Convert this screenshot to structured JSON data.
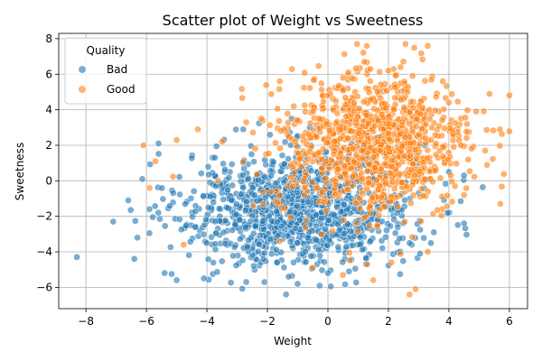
{
  "chart_data": {
    "type": "scatter",
    "title": "Scatter plot of Weight vs Sweetness",
    "xlabel": "Weight",
    "ylabel": "Sweetness",
    "xlim": [
      -8.9,
      6.6
    ],
    "ylim": [
      -7.2,
      8.3
    ],
    "xticks": [
      -8,
      -6,
      -4,
      -2,
      0,
      2,
      4,
      6
    ],
    "yticks": [
      -6,
      -4,
      -2,
      0,
      2,
      4,
      6,
      8
    ],
    "grid": true,
    "legend": {
      "title": "Quality",
      "placement": "top-left"
    },
    "series": [
      {
        "name": "Bad",
        "color": "#1f77b4",
        "center": [
          -1.0,
          -1.6
        ],
        "spread": [
          1.9,
          1.6
        ],
        "count": 1100,
        "points": [
          [
            -8.3,
            -4.3
          ],
          [
            -7.1,
            -2.3
          ],
          [
            -6.6,
            -1.1
          ],
          [
            -6.4,
            -4.4
          ],
          [
            -6.3,
            -3.2
          ],
          [
            -5.9,
            -1.6
          ],
          [
            -5.6,
            2.1
          ],
          [
            -5.4,
            -5.2
          ],
          [
            -5.0,
            -5.6
          ],
          [
            -4.1,
            -5.5
          ],
          [
            -2.7,
            -5.7
          ],
          [
            -2.1,
            -5.7
          ],
          [
            -1.3,
            -5.4
          ],
          [
            -1.0,
            -5.8
          ],
          [
            0.0,
            -5.2
          ],
          [
            0.7,
            -5.1
          ],
          [
            1.3,
            3.5
          ],
          [
            1.8,
            -3.8
          ],
          [
            2.7,
            -3.5
          ],
          [
            3.2,
            2.0
          ],
          [
            3.5,
            -2.9
          ],
          [
            4.0,
            0.5
          ],
          [
            4.5,
            0.3
          ],
          [
            4.5,
            -2.4
          ],
          [
            -1.2,
            3.5
          ],
          [
            0.3,
            2.1
          ],
          [
            -0.6,
            3.0
          ],
          [
            -2.8,
            2.9
          ],
          [
            2.3,
            -1.8
          ],
          [
            3.0,
            -0.7
          ]
        ]
      },
      {
        "name": "Good",
        "color": "#ff7f0e",
        "center": [
          1.5,
          2.0
        ],
        "spread": [
          1.6,
          2.0
        ],
        "count": 1000,
        "points": [
          [
            -6.1,
            2.0
          ],
          [
            -5.9,
            -0.4
          ],
          [
            -5.7,
            1.1
          ],
          [
            -5.0,
            2.3
          ],
          [
            -4.3,
            2.9
          ],
          [
            -3.5,
            2.2
          ],
          [
            -2.2,
            3.5
          ],
          [
            -1.0,
            3.4
          ],
          [
            -0.3,
            3.5
          ],
          [
            0.0,
            4.8
          ],
          [
            0.5,
            5.8
          ],
          [
            1.2,
            6.7
          ],
          [
            1.4,
            6.3
          ],
          [
            2.0,
            6.2
          ],
          [
            2.4,
            6.4
          ],
          [
            2.8,
            5.9
          ],
          [
            3.3,
            7.6
          ],
          [
            3.8,
            5.6
          ],
          [
            4.0,
            4.4
          ],
          [
            4.4,
            2.0
          ],
          [
            4.6,
            3.2
          ],
          [
            4.9,
            3.9
          ],
          [
            5.2,
            1.7
          ],
          [
            5.7,
            -1.3
          ],
          [
            4.5,
            -0.8
          ],
          [
            2.7,
            -6.4
          ],
          [
            2.9,
            -6.1
          ],
          [
            1.5,
            -5.6
          ],
          [
            0.5,
            -5.3
          ],
          [
            -0.5,
            -4.9
          ],
          [
            1.3,
            -4.7
          ],
          [
            2.1,
            -4.6
          ],
          [
            -1.6,
            -3.4
          ],
          [
            3.3,
            -4.0
          ]
        ]
      }
    ]
  }
}
